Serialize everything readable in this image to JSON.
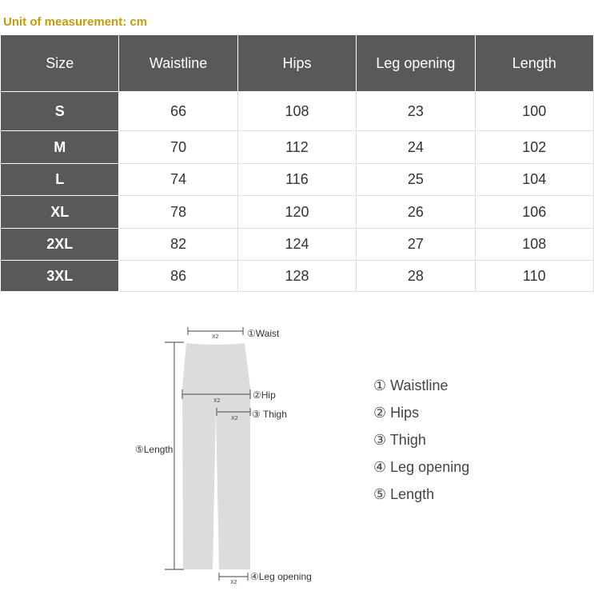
{
  "unit_label": "Unit of measurement: cm",
  "table": {
    "headers": [
      "Size",
      "Waistline",
      "Hips",
      "Leg opening",
      "Length"
    ],
    "rows": [
      [
        "S",
        "66",
        "108",
        "23",
        "100"
      ],
      [
        "M",
        "70",
        "112",
        "24",
        "102"
      ],
      [
        "L",
        "74",
        "116",
        "25",
        "104"
      ],
      [
        "XL",
        "78",
        "120",
        "26",
        "106"
      ],
      [
        "2XL",
        "82",
        "124",
        "27",
        "108"
      ],
      [
        "3XL",
        "86",
        "128",
        "28",
        "110"
      ]
    ]
  },
  "diagram": {
    "waist": "①Waist",
    "hip": "②Hip",
    "thigh": "③ Thigh",
    "leg": "④Leg opening",
    "length": "⑤Length",
    "x2": "X2"
  },
  "legend": [
    "① Waistline",
    "② Hips",
    "③ Thigh",
    "④ Leg opening",
    "⑤ Length"
  ],
  "colors": {
    "header_bg": "#595959",
    "unit_text": "#c49a0c",
    "garment": "#dcdcdc"
  }
}
